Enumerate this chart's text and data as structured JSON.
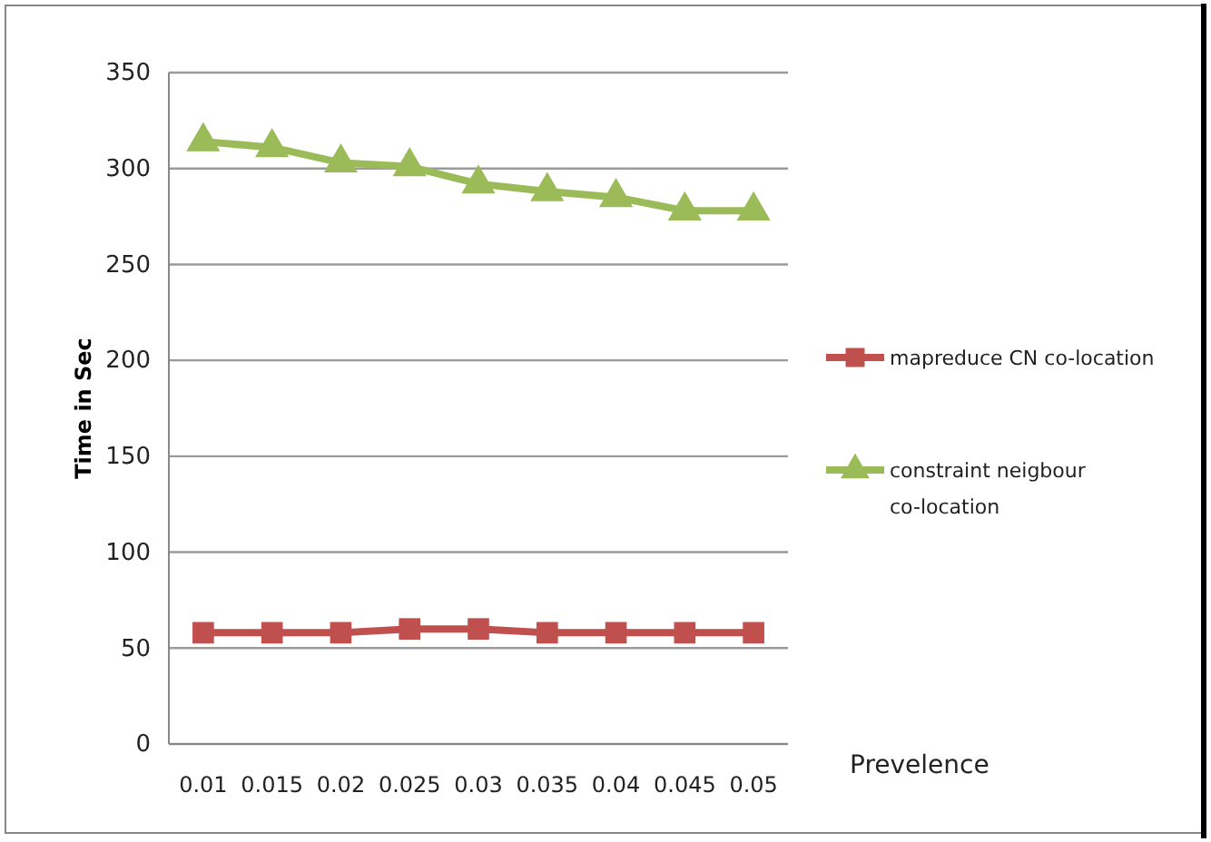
{
  "chart_data": {
    "type": "line",
    "xlabel": "Prevelence",
    "ylabel": "Time in Sec",
    "categories": [
      "0.01",
      "0.015",
      "0.02",
      "0.025",
      "0.03",
      "0.035",
      "0.04",
      "0.045",
      "0.05"
    ],
    "series": [
      {
        "name": "mapreduce CN co-location",
        "color": "#c0504d",
        "marker": "square",
        "values": [
          58,
          58,
          58,
          60,
          60,
          58,
          58,
          58,
          58
        ]
      },
      {
        "name": "constraint neigbour co-location",
        "color": "#9bbb59",
        "marker": "triangle",
        "values": [
          314,
          311,
          303,
          301,
          292,
          288,
          285,
          278,
          278
        ]
      }
    ],
    "ylim": [
      0,
      350
    ],
    "yticks": [
      0,
      50,
      100,
      150,
      200,
      250,
      300,
      350
    ],
    "grid": "y",
    "legend": "right"
  }
}
